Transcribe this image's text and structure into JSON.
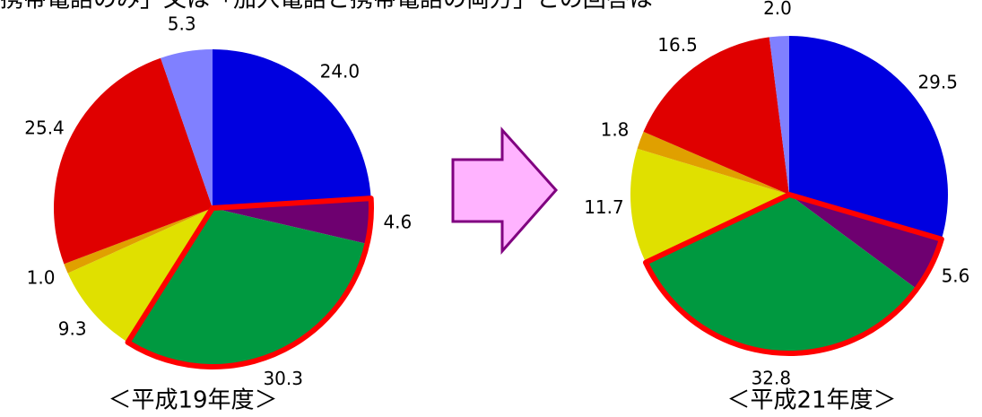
{
  "heading": "携帯電話のみ」又は「加入電話と携帯電話の両方」との回答は",
  "chart_data": [
    {
      "type": "pie",
      "title": "＜平成19年度＞",
      "values": [
        24.0,
        4.6,
        30.3,
        9.3,
        1.0,
        25.4,
        5.3
      ],
      "value_labels": [
        "24.0",
        "4.6",
        "30.3",
        "9.3",
        "1.0",
        "25.4",
        "5.3"
      ],
      "colors": [
        "#0000e0",
        "#6e0070",
        "#009940",
        "#e0e000",
        "#e0a000",
        "#e00000",
        "#8080ff"
      ],
      "highlight": [
        1,
        2
      ]
    },
    {
      "type": "pie",
      "title": "＜平成21年度＞",
      "values": [
        29.5,
        5.6,
        32.8,
        11.7,
        1.8,
        16.5,
        2.0
      ],
      "value_labels": [
        "29.5",
        "5.6",
        "32.8",
        "11.7",
        "1.8",
        "16.5",
        "2.0"
      ],
      "colors": [
        "#0000e0",
        "#6e0070",
        "#009940",
        "#e0e000",
        "#e0a000",
        "#e00000",
        "#8080ff"
      ],
      "highlight": [
        1,
        2
      ]
    }
  ]
}
